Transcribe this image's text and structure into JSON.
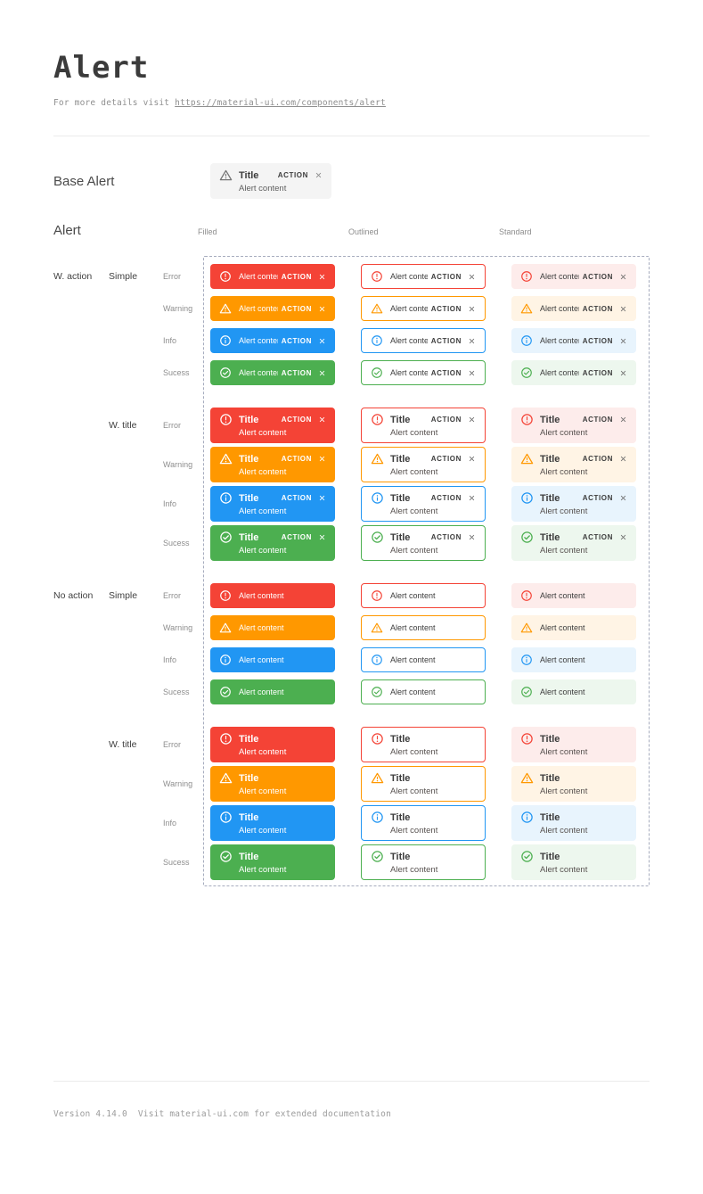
{
  "header": {
    "title": "Alert",
    "subtitle_prefix": "For more details visit",
    "subtitle_link": "https://material-ui.com/components/alert"
  },
  "base_alert": {
    "section_label": "Base Alert",
    "title": "Title",
    "content": "Alert content",
    "action_label": "ACTION",
    "icon": "warning-icon"
  },
  "matrix": {
    "section_label": "Alert",
    "columns": [
      "Filled",
      "Outlined",
      "Standard"
    ],
    "variants": [
      "filled",
      "outlined",
      "standard"
    ],
    "groups": [
      {
        "action_label": "W. action",
        "type_label": "Simple",
        "with_action": true,
        "with_title": false
      },
      {
        "action_label": "",
        "type_label": "W. title",
        "with_action": true,
        "with_title": true
      },
      {
        "action_label": "No action",
        "type_label": "Simple",
        "with_action": false,
        "with_title": false
      },
      {
        "action_label": "",
        "type_label": "W. title",
        "with_action": false,
        "with_title": true
      }
    ],
    "severities": [
      {
        "key": "error",
        "label": "Error"
      },
      {
        "key": "warning",
        "label": "Warning"
      },
      {
        "key": "info",
        "label": "Info"
      },
      {
        "key": "success",
        "label": "Sucess"
      }
    ],
    "alert_title": "Title",
    "alert_content": "Alert content",
    "action_label": "ACTION",
    "icons": {
      "error": "error-circle-icon",
      "warning": "warning-triangle-icon",
      "info": "info-circle-icon",
      "success": "check-circle-icon",
      "close": "close-icon"
    }
  },
  "colors": {
    "error": {
      "main": "#f44336",
      "bg": "#fdeceb"
    },
    "warning": {
      "main": "#ff9800",
      "bg": "#fff4e5"
    },
    "info": {
      "main": "#2196f3",
      "bg": "#e8f4fd"
    },
    "success": {
      "main": "#4caf50",
      "bg": "#edf7ee"
    },
    "base_icon": "#757575",
    "dashed_border": "#a6acbe"
  },
  "footer": {
    "version": "Version 4.14.0",
    "note": "Visit material-ui.com for extended documentation"
  }
}
